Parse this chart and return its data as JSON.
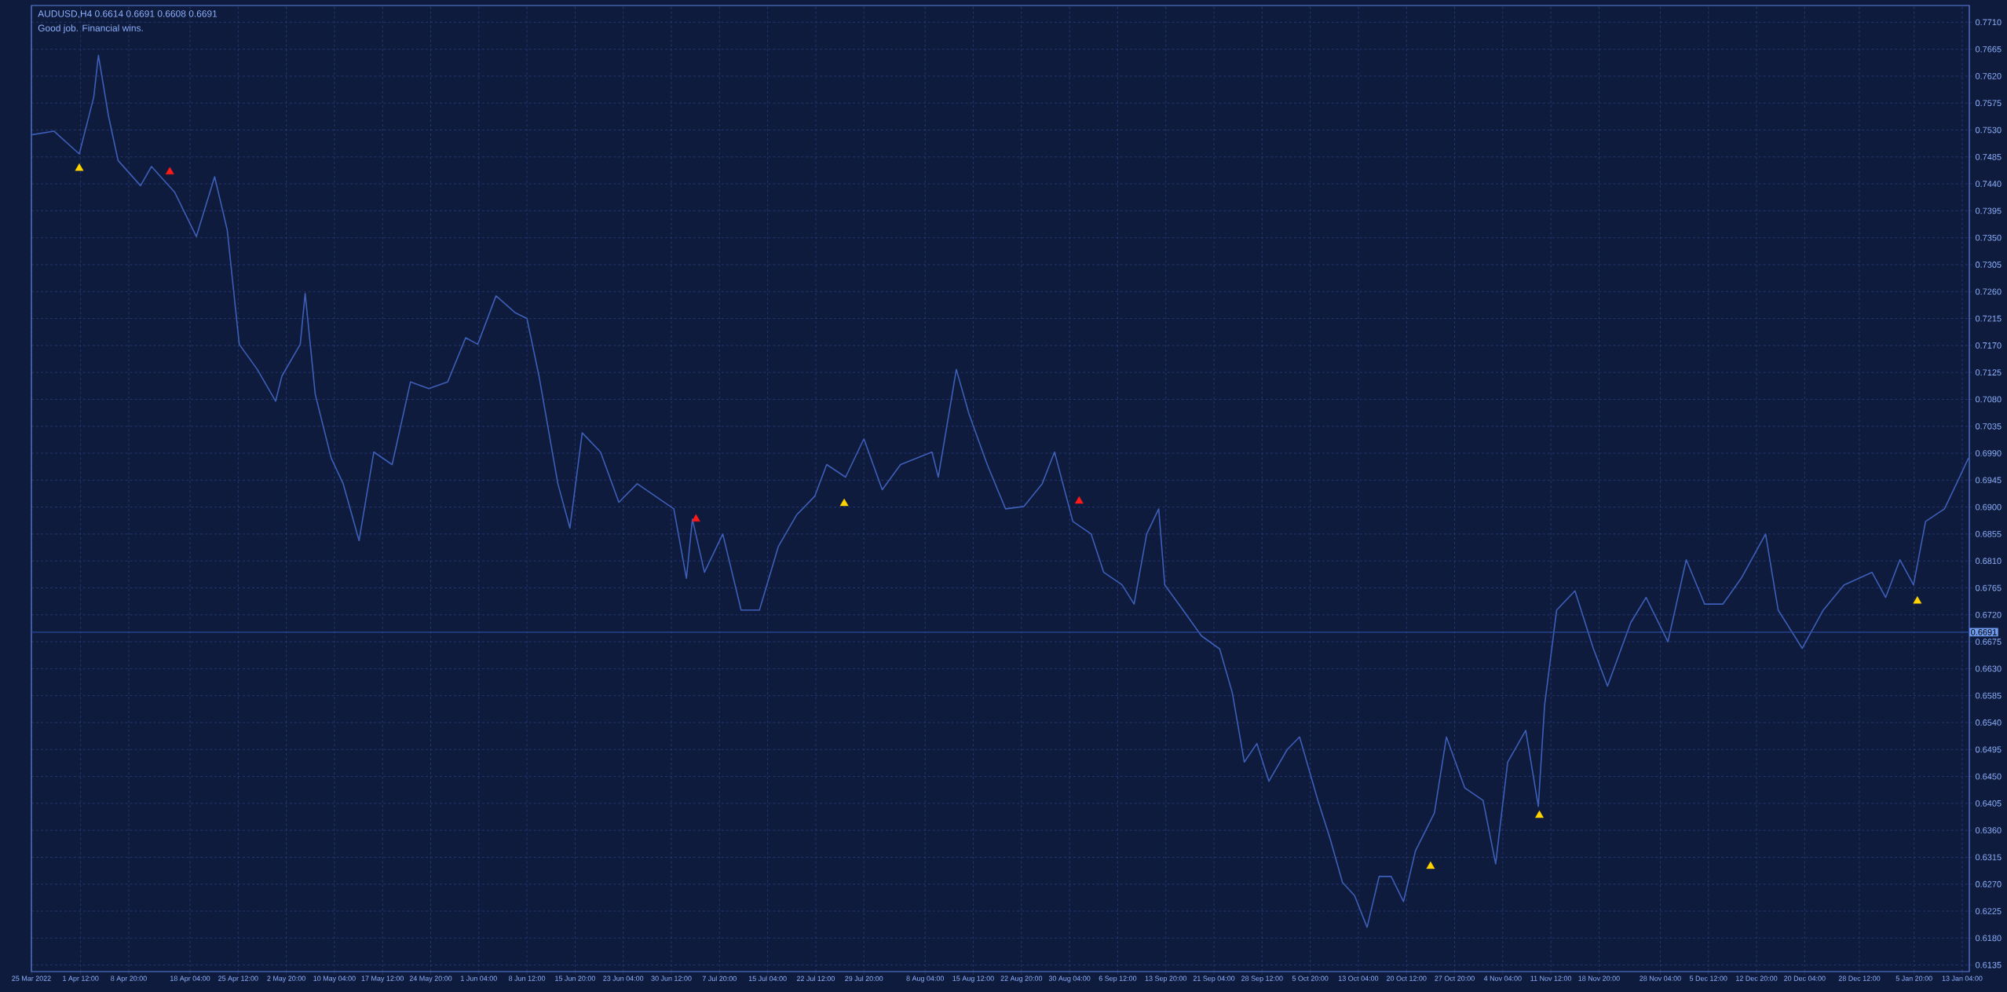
{
  "chart_data": {
    "type": "line",
    "title": "AUDUSD,H4  0.6614 0.6691 0.6608 0.6691",
    "subtitle": "Good job. Financial wins.",
    "xlim": [
      "2022-03-25T00:00",
      "2023-01-14T06:00"
    ],
    "ylim": [
      0.6124,
      0.7738
    ],
    "xticks": [
      {
        "value": "2022-03-25T00:00",
        "label": "25 Mar 2022"
      },
      {
        "value": "2022-04-01T12:00",
        "label": "1 Apr 12:00"
      },
      {
        "value": "2022-04-08T20:00",
        "label": "8 Apr 20:00"
      },
      {
        "value": "2022-04-18T04:00",
        "label": "18 Apr 04:00"
      },
      {
        "value": "2022-04-25T12:00",
        "label": "25 Apr 12:00"
      },
      {
        "value": "2022-05-02T20:00",
        "label": "2 May 20:00"
      },
      {
        "value": "2022-05-10T04:00",
        "label": "10 May 04:00"
      },
      {
        "value": "2022-05-17T12:00",
        "label": "17 May 12:00"
      },
      {
        "value": "2022-05-24T20:00",
        "label": "24 May 20:00"
      },
      {
        "value": "2022-06-01T04:00",
        "label": "1 Jun 04:00"
      },
      {
        "value": "2022-06-08T12:00",
        "label": "8 Jun 12:00"
      },
      {
        "value": "2022-06-15T20:00",
        "label": "15 Jun 20:00"
      },
      {
        "value": "2022-06-23T04:00",
        "label": "23 Jun 04:00"
      },
      {
        "value": "2022-06-30T12:00",
        "label": "30 Jun 12:00"
      },
      {
        "value": "2022-07-07T20:00",
        "label": "7 Jul 20:00"
      },
      {
        "value": "2022-07-15T04:00",
        "label": "15 Jul 04:00"
      },
      {
        "value": "2022-07-22T12:00",
        "label": "22 Jul 12:00"
      },
      {
        "value": "2022-07-29T20:00",
        "label": "29 Jul 20:00"
      },
      {
        "value": "2022-08-08T04:00",
        "label": "8 Aug 04:00"
      },
      {
        "value": "2022-08-15T12:00",
        "label": "15 Aug 12:00"
      },
      {
        "value": "2022-08-22T20:00",
        "label": "22 Aug 20:00"
      },
      {
        "value": "2022-08-30T04:00",
        "label": "30 Aug 04:00"
      },
      {
        "value": "2022-09-06T12:00",
        "label": "6 Sep 12:00"
      },
      {
        "value": "2022-09-13T20:00",
        "label": "13 Sep 20:00"
      },
      {
        "value": "2022-09-21T04:00",
        "label": "21 Sep 04:00"
      },
      {
        "value": "2022-09-28T12:00",
        "label": "28 Sep 12:00"
      },
      {
        "value": "2022-10-05T20:00",
        "label": "5 Oct 20:00"
      },
      {
        "value": "2022-10-13T04:00",
        "label": "13 Oct 04:00"
      },
      {
        "value": "2022-10-20T12:00",
        "label": "20 Oct 12:00"
      },
      {
        "value": "2022-10-27T20:00",
        "label": "27 Oct 20:00"
      },
      {
        "value": "2022-11-04T04:00",
        "label": "4 Nov 04:00"
      },
      {
        "value": "2022-11-11T12:00",
        "label": "11 Nov 12:00"
      },
      {
        "value": "2022-11-18T20:00",
        "label": "18 Nov 20:00"
      },
      {
        "value": "2022-11-28T04:00",
        "label": "28 Nov 04:00"
      },
      {
        "value": "2022-12-05T12:00",
        "label": "5 Dec 12:00"
      },
      {
        "value": "2022-12-12T20:00",
        "label": "12 Dec 20:00"
      },
      {
        "value": "2022-12-20T04:00",
        "label": "20 Dec 04:00"
      },
      {
        "value": "2022-12-28T12:00",
        "label": "28 Dec 12:00"
      },
      {
        "value": "2023-01-05T20:00",
        "label": "5 Jan 20:00"
      },
      {
        "value": "2023-01-13T04:00",
        "label": "13 Jan 04:00"
      }
    ],
    "yticks": [
      {
        "value": 0.6135,
        "label": "0.6135"
      },
      {
        "value": 0.618,
        "label": "0.6180"
      },
      {
        "value": 0.6225,
        "label": "0.6225"
      },
      {
        "value": 0.627,
        "label": "0.6270"
      },
      {
        "value": 0.6315,
        "label": "0.6315"
      },
      {
        "value": 0.636,
        "label": "0.6360"
      },
      {
        "value": 0.6405,
        "label": "0.6405"
      },
      {
        "value": 0.645,
        "label": "0.6450"
      },
      {
        "value": 0.6495,
        "label": "0.6495"
      },
      {
        "value": 0.654,
        "label": "0.6540"
      },
      {
        "value": 0.6585,
        "label": "0.6585"
      },
      {
        "value": 0.663,
        "label": "0.6630"
      },
      {
        "value": 0.6675,
        "label": "0.6675"
      },
      {
        "value": 0.672,
        "label": "0.6720"
      },
      {
        "value": 0.6765,
        "label": "0.6765"
      },
      {
        "value": 0.681,
        "label": "0.6810"
      },
      {
        "value": 0.6855,
        "label": "0.6855"
      },
      {
        "value": 0.69,
        "label": "0.6900"
      },
      {
        "value": 0.6945,
        "label": "0.6945"
      },
      {
        "value": 0.699,
        "label": "0.6990"
      },
      {
        "value": 0.7035,
        "label": "0.7035"
      },
      {
        "value": 0.708,
        "label": "0.7080"
      },
      {
        "value": 0.7125,
        "label": "0.7125"
      },
      {
        "value": 0.717,
        "label": "0.7170"
      },
      {
        "value": 0.7215,
        "label": "0.7215"
      },
      {
        "value": 0.726,
        "label": "0.7260"
      },
      {
        "value": 0.7305,
        "label": "0.7305"
      },
      {
        "value": 0.735,
        "label": "0.7350"
      },
      {
        "value": 0.7395,
        "label": "0.7395"
      },
      {
        "value": 0.744,
        "label": "0.7440"
      },
      {
        "value": 0.7485,
        "label": "0.7485"
      },
      {
        "value": 0.753,
        "label": "0.7530"
      },
      {
        "value": 0.7575,
        "label": "0.7575"
      },
      {
        "value": 0.762,
        "label": "0.7620"
      },
      {
        "value": 0.7665,
        "label": "0.7665"
      },
      {
        "value": 0.771,
        "label": "0.7710"
      }
    ],
    "grid": true,
    "ref_lines": [
      {
        "axis": "y",
        "value": 0.6691,
        "label": "0.6691",
        "color": "#2a4a9a"
      }
    ],
    "series": [
      {
        "color": "#3d5fb8",
        "x": [
          "2022-03-25T00:00",
          "2022-03-28T11:00",
          "2022-04-01T07:00",
          "2022-04-03T12:00",
          "2022-04-04T05:00",
          "2022-04-05T18:00",
          "2022-04-07T05:00",
          "2022-04-10T15:00",
          "2022-04-12T07:00",
          "2022-04-15T20:00",
          "2022-04-19T03:00",
          "2022-04-21T22:00",
          "2022-04-23T20:00",
          "2022-04-25T16:00",
          "2022-04-28T10:00",
          "2022-05-01T05:00",
          "2022-05-02T04:00",
          "2022-05-04T23:00",
          "2022-05-05T17:00",
          "2022-05-07T06:00",
          "2022-05-09T16:00",
          "2022-05-11T12:00",
          "2022-05-13T22:00",
          "2022-05-16T04:00",
          "2022-05-18T23:00",
          "2022-05-21T18:00",
          "2022-05-24T13:00",
          "2022-05-27T10:00",
          "2022-05-30T04:00",
          "2022-06-01T00:00",
          "2022-06-03T19:00",
          "2022-06-06T16:00",
          "2022-06-08T12:00",
          "2022-06-10T08:00",
          "2022-06-13T05:00",
          "2022-06-15T01:00",
          "2022-06-16T22:00",
          "2022-06-19T17:00",
          "2022-06-22T12:00",
          "2022-06-25T07:00",
          "2022-06-28T02:00",
          "2022-06-30T21:00",
          "2022-07-02T19:00",
          "2022-07-03T17:00",
          "2022-07-05T13:00",
          "2022-07-08T08:00",
          "2022-07-11T03:00",
          "2022-07-13T22:00",
          "2022-07-16T19:00",
          "2022-07-19T14:00",
          "2022-07-22T08:00",
          "2022-07-24T04:00",
          "2022-07-27T01:00",
          "2022-07-29T20:00",
          "2022-08-01T15:00",
          "2022-08-04T10:00",
          "2022-08-09T05:00",
          "2022-08-10T04:00",
          "2022-08-12T22:00",
          "2022-08-14T20:00",
          "2022-08-17T15:00",
          "2022-08-20T10:00",
          "2022-08-23T05:00",
          "2022-08-26T00:00",
          "2022-08-27T21:00",
          "2022-08-30T16:00",
          "2022-09-02T11:00",
          "2022-09-04T09:00",
          "2022-09-07T04:00",
          "2022-09-09T00:00",
          "2022-09-10T22:00",
          "2022-09-12T18:00",
          "2022-09-13T16:00",
          "2022-09-16T11:00",
          "2022-09-19T06:00",
          "2022-09-22T01:00",
          "2022-09-23T23:00",
          "2022-09-25T19:00",
          "2022-09-27T17:00",
          "2022-09-29T13:00",
          "2022-10-02T08:00",
          "2022-10-04T05:00",
          "2022-10-07T00:00",
          "2022-10-08T20:00",
          "2022-10-10T18:00",
          "2022-10-12T14:00",
          "2022-10-14T12:00",
          "2022-10-16T08:00",
          "2022-10-18T04:00",
          "2022-10-20T01:00",
          "2022-10-21T21:00",
          "2022-10-24T18:00",
          "2022-10-26T14:00",
          "2022-10-29T09:00",
          "2022-11-01T04:00",
          "2022-11-03T02:00",
          "2022-11-04T22:00",
          "2022-11-07T16:00",
          "2022-11-09T14:00",
          "2022-11-10T13:00",
          "2022-11-12T09:00",
          "2022-11-15T04:00",
          "2022-11-17T23:00",
          "2022-11-20T03:00",
          "2022-11-23T16:00",
          "2022-11-26T00:00",
          "2022-11-29T08:00",
          "2022-12-02T03:00",
          "2022-12-04T22:00",
          "2022-12-07T17:00",
          "2022-12-10T12:00",
          "2022-12-14T05:00",
          "2022-12-16T03:00",
          "2022-12-19T19:00",
          "2022-12-23T00:00",
          "2022-12-26T04:00",
          "2022-12-30T10:00",
          "2023-01-01T12:00",
          "2023-01-03T16:00",
          "2023-01-05T18:00",
          "2023-01-07T14:00",
          "2023-01-10T11:00",
          "2023-01-12T07:00",
          "2023-01-14T03:00"
        ],
        "values": [
          0.7522,
          0.7528,
          0.749,
          0.7585,
          0.7655,
          0.7553,
          0.7479,
          0.7437,
          0.7469,
          0.7426,
          0.7352,
          0.7452,
          0.7363,
          0.7172,
          0.713,
          0.7077,
          0.7119,
          0.7172,
          0.7257,
          0.7088,
          0.6982,
          0.6939,
          0.6844,
          0.6992,
          0.6971,
          0.7109,
          0.7098,
          0.7109,
          0.7183,
          0.7172,
          0.7253,
          0.7225,
          0.7215,
          0.7119,
          0.6939,
          0.6865,
          0.7024,
          0.6992,
          0.6908,
          0.6939,
          0.6918,
          0.6897,
          0.6781,
          0.688,
          0.6791,
          0.6855,
          0.6728,
          0.6728,
          0.6834,
          0.6887,
          0.6918,
          0.6971,
          0.695,
          0.7014,
          0.6929,
          0.6971,
          0.6992,
          0.695,
          0.713,
          0.7056,
          0.6971,
          0.6897,
          0.6901,
          0.6939,
          0.6992,
          0.6876,
          0.6855,
          0.6791,
          0.677,
          0.6738,
          0.6855,
          0.6897,
          0.677,
          0.6728,
          0.6685,
          0.6663,
          0.659,
          0.6474,
          0.6505,
          0.6442,
          0.6495,
          0.6516,
          0.641,
          0.6347,
          0.6273,
          0.6251,
          0.6198,
          0.6283,
          0.6283,
          0.6241,
          0.6326,
          0.6389,
          0.6516,
          0.6431,
          0.641,
          0.6304,
          0.6474,
          0.6527,
          0.64,
          0.6569,
          0.6728,
          0.676,
          0.6664,
          0.6601,
          0.6707,
          0.6749,
          0.6675,
          0.6812,
          0.6738,
          0.6738,
          0.6781,
          0.6855,
          0.6728,
          0.6664,
          0.6728,
          0.677,
          0.6791,
          0.6749,
          0.6812,
          0.677,
          0.6876,
          0.6897,
          0.6939,
          0.6982
        ]
      },
      {
        "type": "scatter",
        "marker": "triangle",
        "color": "#ffd400",
        "x": [
          "2022-04-01T07:00",
          "2022-07-26T20:00",
          "2022-10-24T04:00",
          "2022-11-09T18:00",
          "2023-01-06T08:00"
        ],
        "values": [
          0.7466,
          0.6906,
          0.63,
          0.6385,
          0.6743
        ]
      },
      {
        "type": "scatter",
        "marker": "triangle",
        "color": "#ff1a1a",
        "x": [
          "2022-04-15T02:00",
          "2022-07-04T06:00",
          "2022-08-31T15:00"
        ],
        "values": [
          0.746,
          0.688,
          0.691
        ]
      }
    ]
  }
}
